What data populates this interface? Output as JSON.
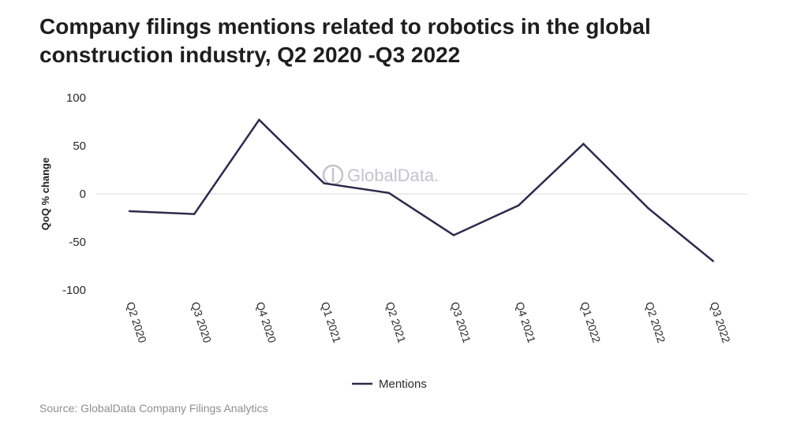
{
  "title": "Company filings mentions related to robotics in the global construction industry, Q2 2020 -Q3 2022",
  "source": "Source: GlobalData Company Filings Analytics",
  "watermark": "GlobalData.",
  "colors": {
    "line": "#2d2a4a",
    "zero_line": "#d9d9d9",
    "watermark": "#c3c3cc"
  },
  "chart_data": {
    "type": "line",
    "categories": [
      "Q2 2020",
      "Q3 2020",
      "Q4 2020",
      "Q1 2021",
      "Q2 2021",
      "Q3 2021",
      "Q4 2021",
      "Q1 2022",
      "Q2 2022",
      "Q3 2022"
    ],
    "series": [
      {
        "name": "Mentions",
        "values": [
          -18,
          -21,
          77,
          11,
          1,
          -43,
          -12,
          52,
          -15,
          -70
        ]
      }
    ],
    "ylabel": "QoQ % change",
    "xlabel": "",
    "ylim": [
      -100,
      100
    ],
    "yticks": [
      100,
      50,
      0,
      -50,
      -100
    ],
    "grid": false,
    "legend": "bottom-center"
  }
}
